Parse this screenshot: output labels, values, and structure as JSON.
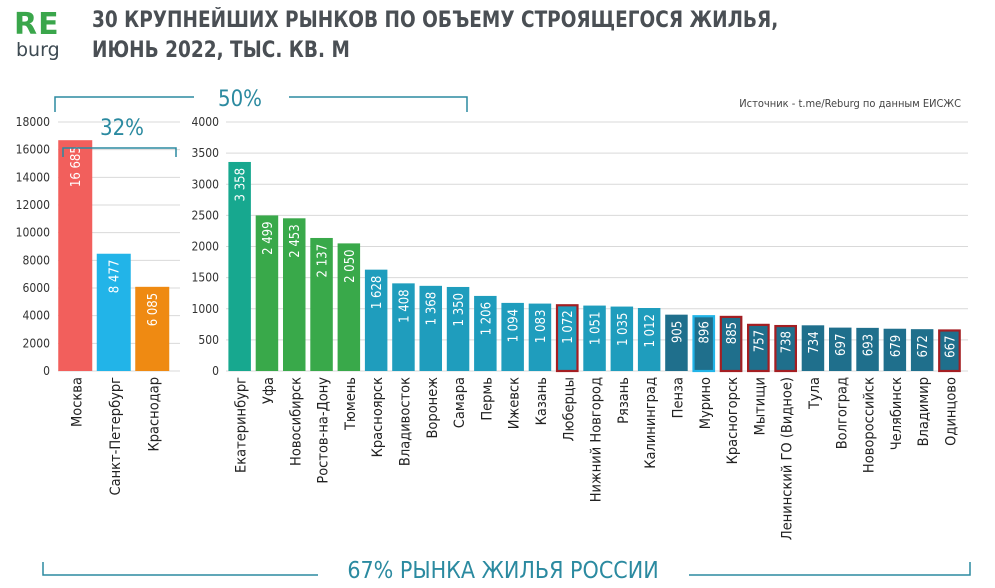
{
  "logo": {
    "top": "RE",
    "bottom": "burg"
  },
  "header": {
    "title_line1": "30 КРУПНЕЙШИХ РЫНКОВ ПО ОБЪЕМУ СТРОЯЩЕГОСЯ ЖИЛЬЯ,",
    "title_line2": "ИЮНЬ 2022, ТЫС. КВ. М"
  },
  "source": "Источник - t.me/Reburg по данным ЕИСЖС",
  "annotations": {
    "share_top3": "32%",
    "share_top10": "50%",
    "share_all": "67% РЫНКА ЖИЛЬЯ РОССИИ"
  },
  "colors": {
    "red": "#f25f5c",
    "blue": "#22b4e8",
    "orange": "#ef8a12",
    "green": "#39a94a",
    "teal": "#17a88f",
    "cyan_blue": "#1f9dbd",
    "dark_blue": "#1f6f8c",
    "highlight_border": "#a41e22",
    "highlight_border_blue": "#22b4e8",
    "bracket": "#2b8aa0"
  },
  "chart_data": [
    {
      "type": "bar",
      "ylim": [
        0,
        18000
      ],
      "yticks": [
        0,
        2000,
        4000,
        6000,
        8000,
        10000,
        12000,
        14000,
        16000,
        18000
      ],
      "grid": true,
      "categories": [
        "Москва",
        "Санкт-Петербург",
        "Краснодар"
      ],
      "values": [
        16685,
        8477,
        6085
      ],
      "labels": [
        "16 685",
        "8 477",
        "6 085"
      ],
      "bar_colors": [
        "red",
        "blue",
        "orange"
      ]
    },
    {
      "type": "bar",
      "ylim": [
        0,
        4000
      ],
      "yticks": [
        0,
        500,
        1000,
        1500,
        2000,
        2500,
        3000,
        3500,
        4000
      ],
      "grid": true,
      "categories": [
        "Екатеринбург",
        "Уфа",
        "Новосибирск",
        "Ростов-на-Дону",
        "Тюмень",
        "Красноярск",
        "Владивосток",
        "Воронеж",
        "Самара",
        "Пермь",
        "Ижевск",
        "Казань",
        "Люберцы",
        "Нижний Новгород",
        "Рязань",
        "Калининград",
        "Пенза",
        "Мурино",
        "Красногорск",
        "Мытищи",
        "Ленинский ГО (Видное)",
        "Тула",
        "Волгоград",
        "Новороссийск",
        "Челябинск",
        "Владимир",
        "Одинцово"
      ],
      "values": [
        3358,
        2499,
        2453,
        2137,
        2050,
        1628,
        1408,
        1368,
        1350,
        1206,
        1094,
        1083,
        1072,
        1051,
        1035,
        1012,
        905,
        896,
        885,
        757,
        738,
        734,
        697,
        693,
        679,
        672,
        667
      ],
      "labels": [
        "3 358",
        "2 499",
        "2 453",
        "2 137",
        "2 050",
        "1 628",
        "1 408",
        "1 368",
        "1 350",
        "1 206",
        "1 094",
        "1 083",
        "1 072",
        "1 051",
        "1 035",
        "1 012",
        "905",
        "896",
        "885",
        "757",
        "738",
        "734",
        "697",
        "693",
        "679",
        "672",
        "667"
      ],
      "bar_colors": [
        "teal",
        "green",
        "green",
        "green",
        "green",
        "cyan_blue",
        "cyan_blue",
        "cyan_blue",
        "cyan_blue",
        "cyan_blue",
        "cyan_blue",
        "cyan_blue",
        "cyan_blue",
        "cyan_blue",
        "cyan_blue",
        "cyan_blue",
        "dark_blue",
        "dark_blue",
        "dark_blue",
        "dark_blue",
        "dark_blue",
        "dark_blue",
        "dark_blue",
        "dark_blue",
        "dark_blue",
        "dark_blue",
        "dark_blue"
      ],
      "highlighted": [
        "Люберцы",
        "Мурино",
        "Красногорск",
        "Мытищи",
        "Ленинский ГО (Видное)",
        "Одинцово"
      ]
    }
  ]
}
